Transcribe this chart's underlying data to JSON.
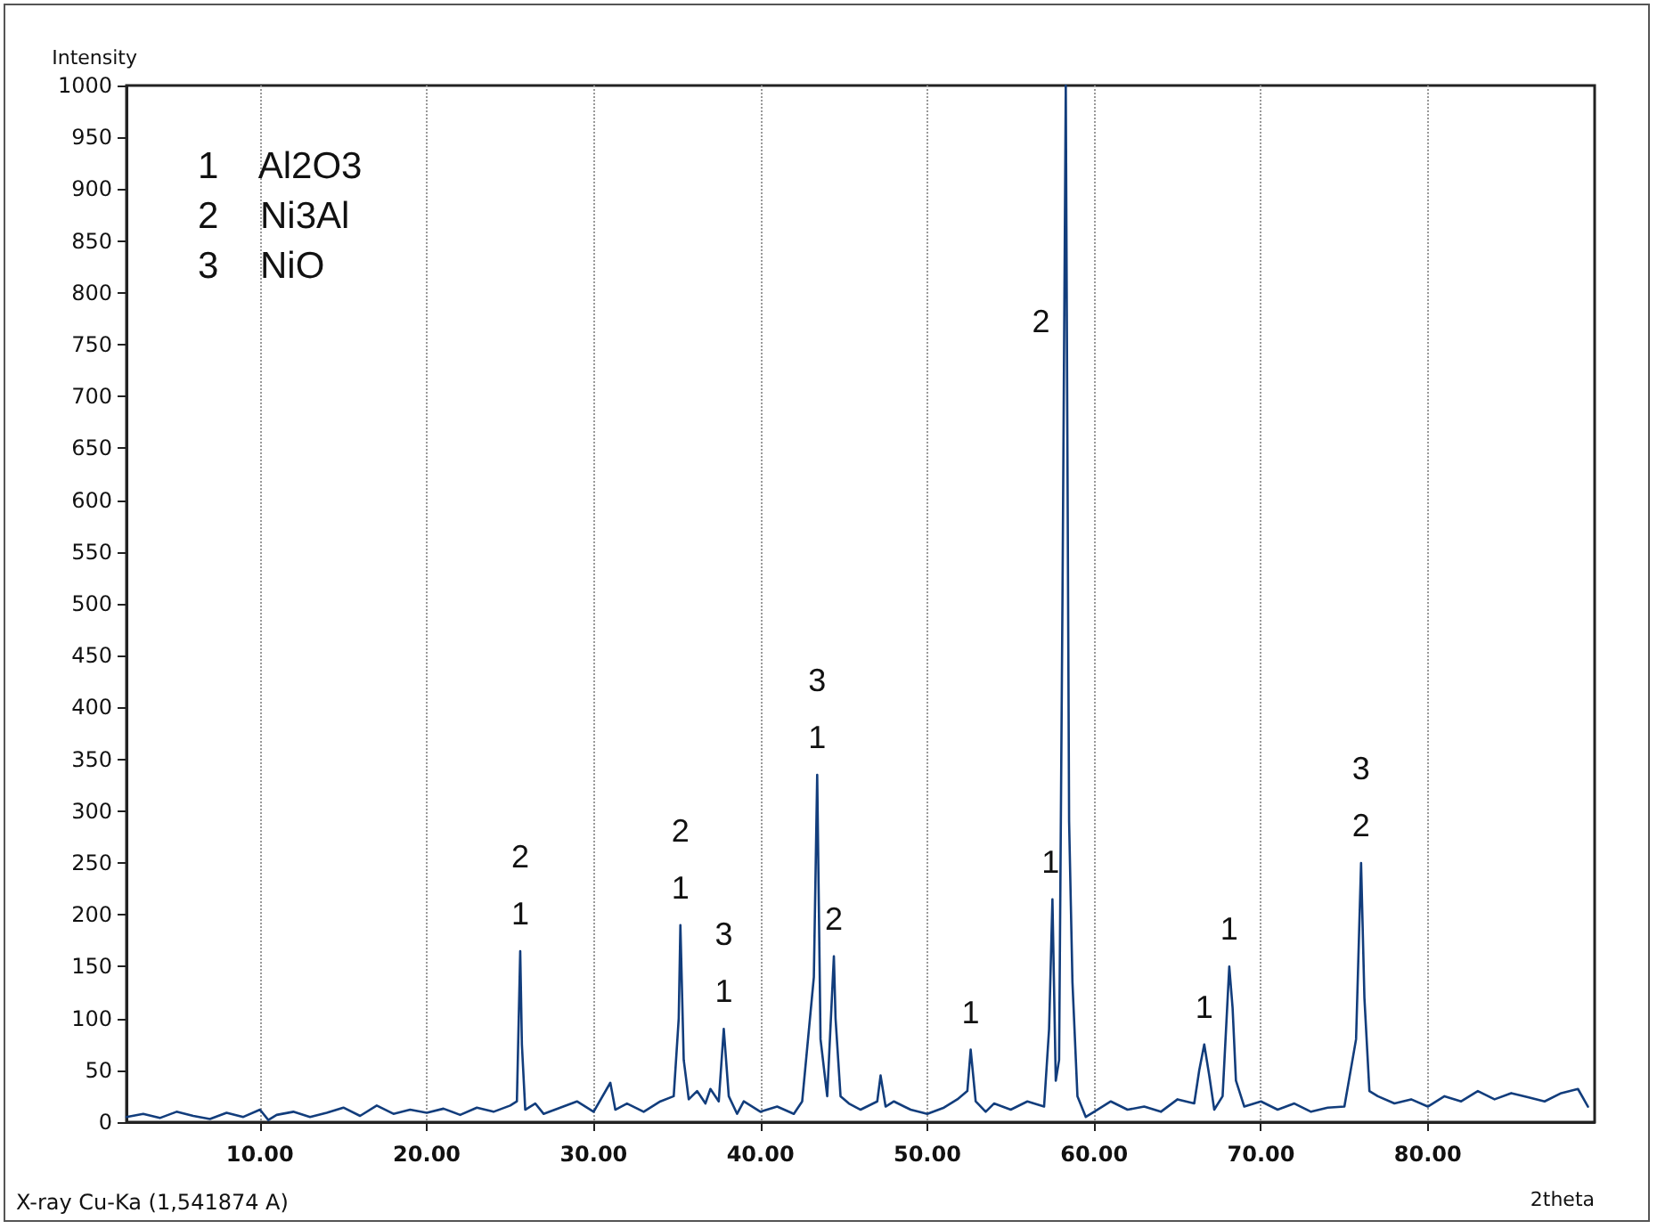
{
  "chart_data": {
    "type": "line",
    "ylabel": "Intensity",
    "xlabel": "2theta",
    "annotations": [
      "1   Al2O3",
      "2   Ni3Al",
      "3   NiO",
      "X-ray Cu-Ka (1,541874 A)",
      {
        "text": "1",
        "x": 25.6,
        "y": 165
      },
      {
        "text": "2",
        "x": 25.6,
        "y": 165
      },
      {
        "text": "1",
        "x": 35.2,
        "y": 190
      },
      {
        "text": "2",
        "x": 35.2,
        "y": 190
      },
      {
        "text": "1",
        "x": 37.8,
        "y": 90
      },
      {
        "text": "3",
        "x": 37.8,
        "y": 90
      },
      {
        "text": "1",
        "x": 43.4,
        "y": 335
      },
      {
        "text": "3",
        "x": 43.4,
        "y": 335
      },
      {
        "text": "2",
        "x": 44.4,
        "y": 160
      },
      {
        "text": "1",
        "x": 52.6,
        "y": 70
      },
      {
        "text": "1",
        "x": 57.5,
        "y": 215
      },
      {
        "text": "2",
        "x": 58.2,
        "y": 772
      },
      {
        "text": "1",
        "x": 66.6,
        "y": 75
      },
      {
        "text": "1",
        "x": 68.1,
        "y": 150
      },
      {
        "text": "2",
        "x": 76,
        "y": 250
      },
      {
        "text": "3",
        "x": 76,
        "y": 250
      }
    ],
    "x": [
      2,
      3,
      4,
      5,
      6,
      7,
      8,
      9,
      10,
      10.5,
      11,
      12,
      13,
      14,
      15,
      16,
      17,
      18,
      19,
      20,
      21,
      22,
      23,
      24,
      25,
      25.4,
      25.6,
      25.7,
      25.9,
      26.5,
      27,
      28,
      29,
      30,
      31,
      31.3,
      32,
      33,
      34,
      34.8,
      35.1,
      35.2,
      35.4,
      35.7,
      36.2,
      36.7,
      37,
      37.5,
      37.8,
      38.1,
      38.6,
      39,
      40,
      41,
      42,
      42.5,
      43.2,
      43.4,
      43.6,
      44,
      44.4,
      44.5,
      44.8,
      45.3,
      46,
      47,
      47.2,
      47.5,
      48,
      49,
      50,
      51,
      51.8,
      52.4,
      52.6,
      52.9,
      53.5,
      54,
      55,
      56,
      57,
      57.3,
      57.5,
      57.7,
      57.9,
      58.1,
      58.3,
      58.5,
      58.7,
      59,
      59.5,
      60,
      61,
      62,
      63,
      64,
      65,
      66,
      66.3,
      66.6,
      66.9,
      67.2,
      67.7,
      68.1,
      68.3,
      68.5,
      69,
      70,
      71,
      72,
      73,
      74,
      75,
      75.7,
      76,
      76.2,
      76.5,
      77,
      78,
      79,
      80,
      81,
      82,
      83,
      84,
      85,
      86,
      87,
      88,
      89,
      89.6
    ],
    "series": [
      {
        "color": "#123d7c",
        "values": [
          5,
          8,
          4,
          10,
          6,
          3,
          9,
          5,
          12,
          2,
          7,
          10,
          5,
          9,
          14,
          6,
          16,
          8,
          12,
          9,
          13,
          7,
          14,
          10,
          16,
          20,
          165,
          75,
          12,
          18,
          8,
          14,
          20,
          10,
          38,
          12,
          18,
          10,
          20,
          25,
          100,
          190,
          60,
          22,
          30,
          18,
          32,
          20,
          90,
          25,
          8,
          20,
          10,
          15,
          8,
          20,
          140,
          335,
          80,
          25,
          160,
          100,
          25,
          18,
          12,
          20,
          45,
          15,
          20,
          12,
          8,
          14,
          22,
          30,
          70,
          20,
          10,
          18,
          12,
          20,
          15,
          90,
          215,
          40,
          60,
          500,
          1000,
          290,
          135,
          25,
          5,
          10,
          20,
          12,
          15,
          10,
          22,
          18,
          50,
          75,
          45,
          12,
          25,
          150,
          110,
          40,
          15,
          20,
          12,
          18,
          10,
          14,
          15,
          80,
          250,
          120,
          30,
          25,
          18,
          22,
          15,
          25,
          20,
          30,
          22,
          28,
          24,
          20,
          28,
          32,
          15
        ]
      }
    ],
    "xlim": [
      2,
      90
    ],
    "ylim": [
      0,
      1000
    ],
    "xticks": [
      {
        "value": 10,
        "label": "10.00"
      },
      {
        "value": 20,
        "label": "20.00"
      },
      {
        "value": 30,
        "label": "30.00"
      },
      {
        "value": 40,
        "label": "40.00"
      },
      {
        "value": 50,
        "label": "50.00"
      },
      {
        "value": 60,
        "label": "60.00"
      },
      {
        "value": 70,
        "label": "70.00"
      },
      {
        "value": 80,
        "label": "80.00"
      }
    ],
    "yticks": [
      0,
      50,
      100,
      150,
      200,
      250,
      300,
      350,
      400,
      450,
      500,
      550,
      600,
      650,
      700,
      750,
      800,
      850,
      900,
      950,
      1000
    ],
    "grid": "x",
    "marker": "none",
    "line_style": "solid"
  }
}
